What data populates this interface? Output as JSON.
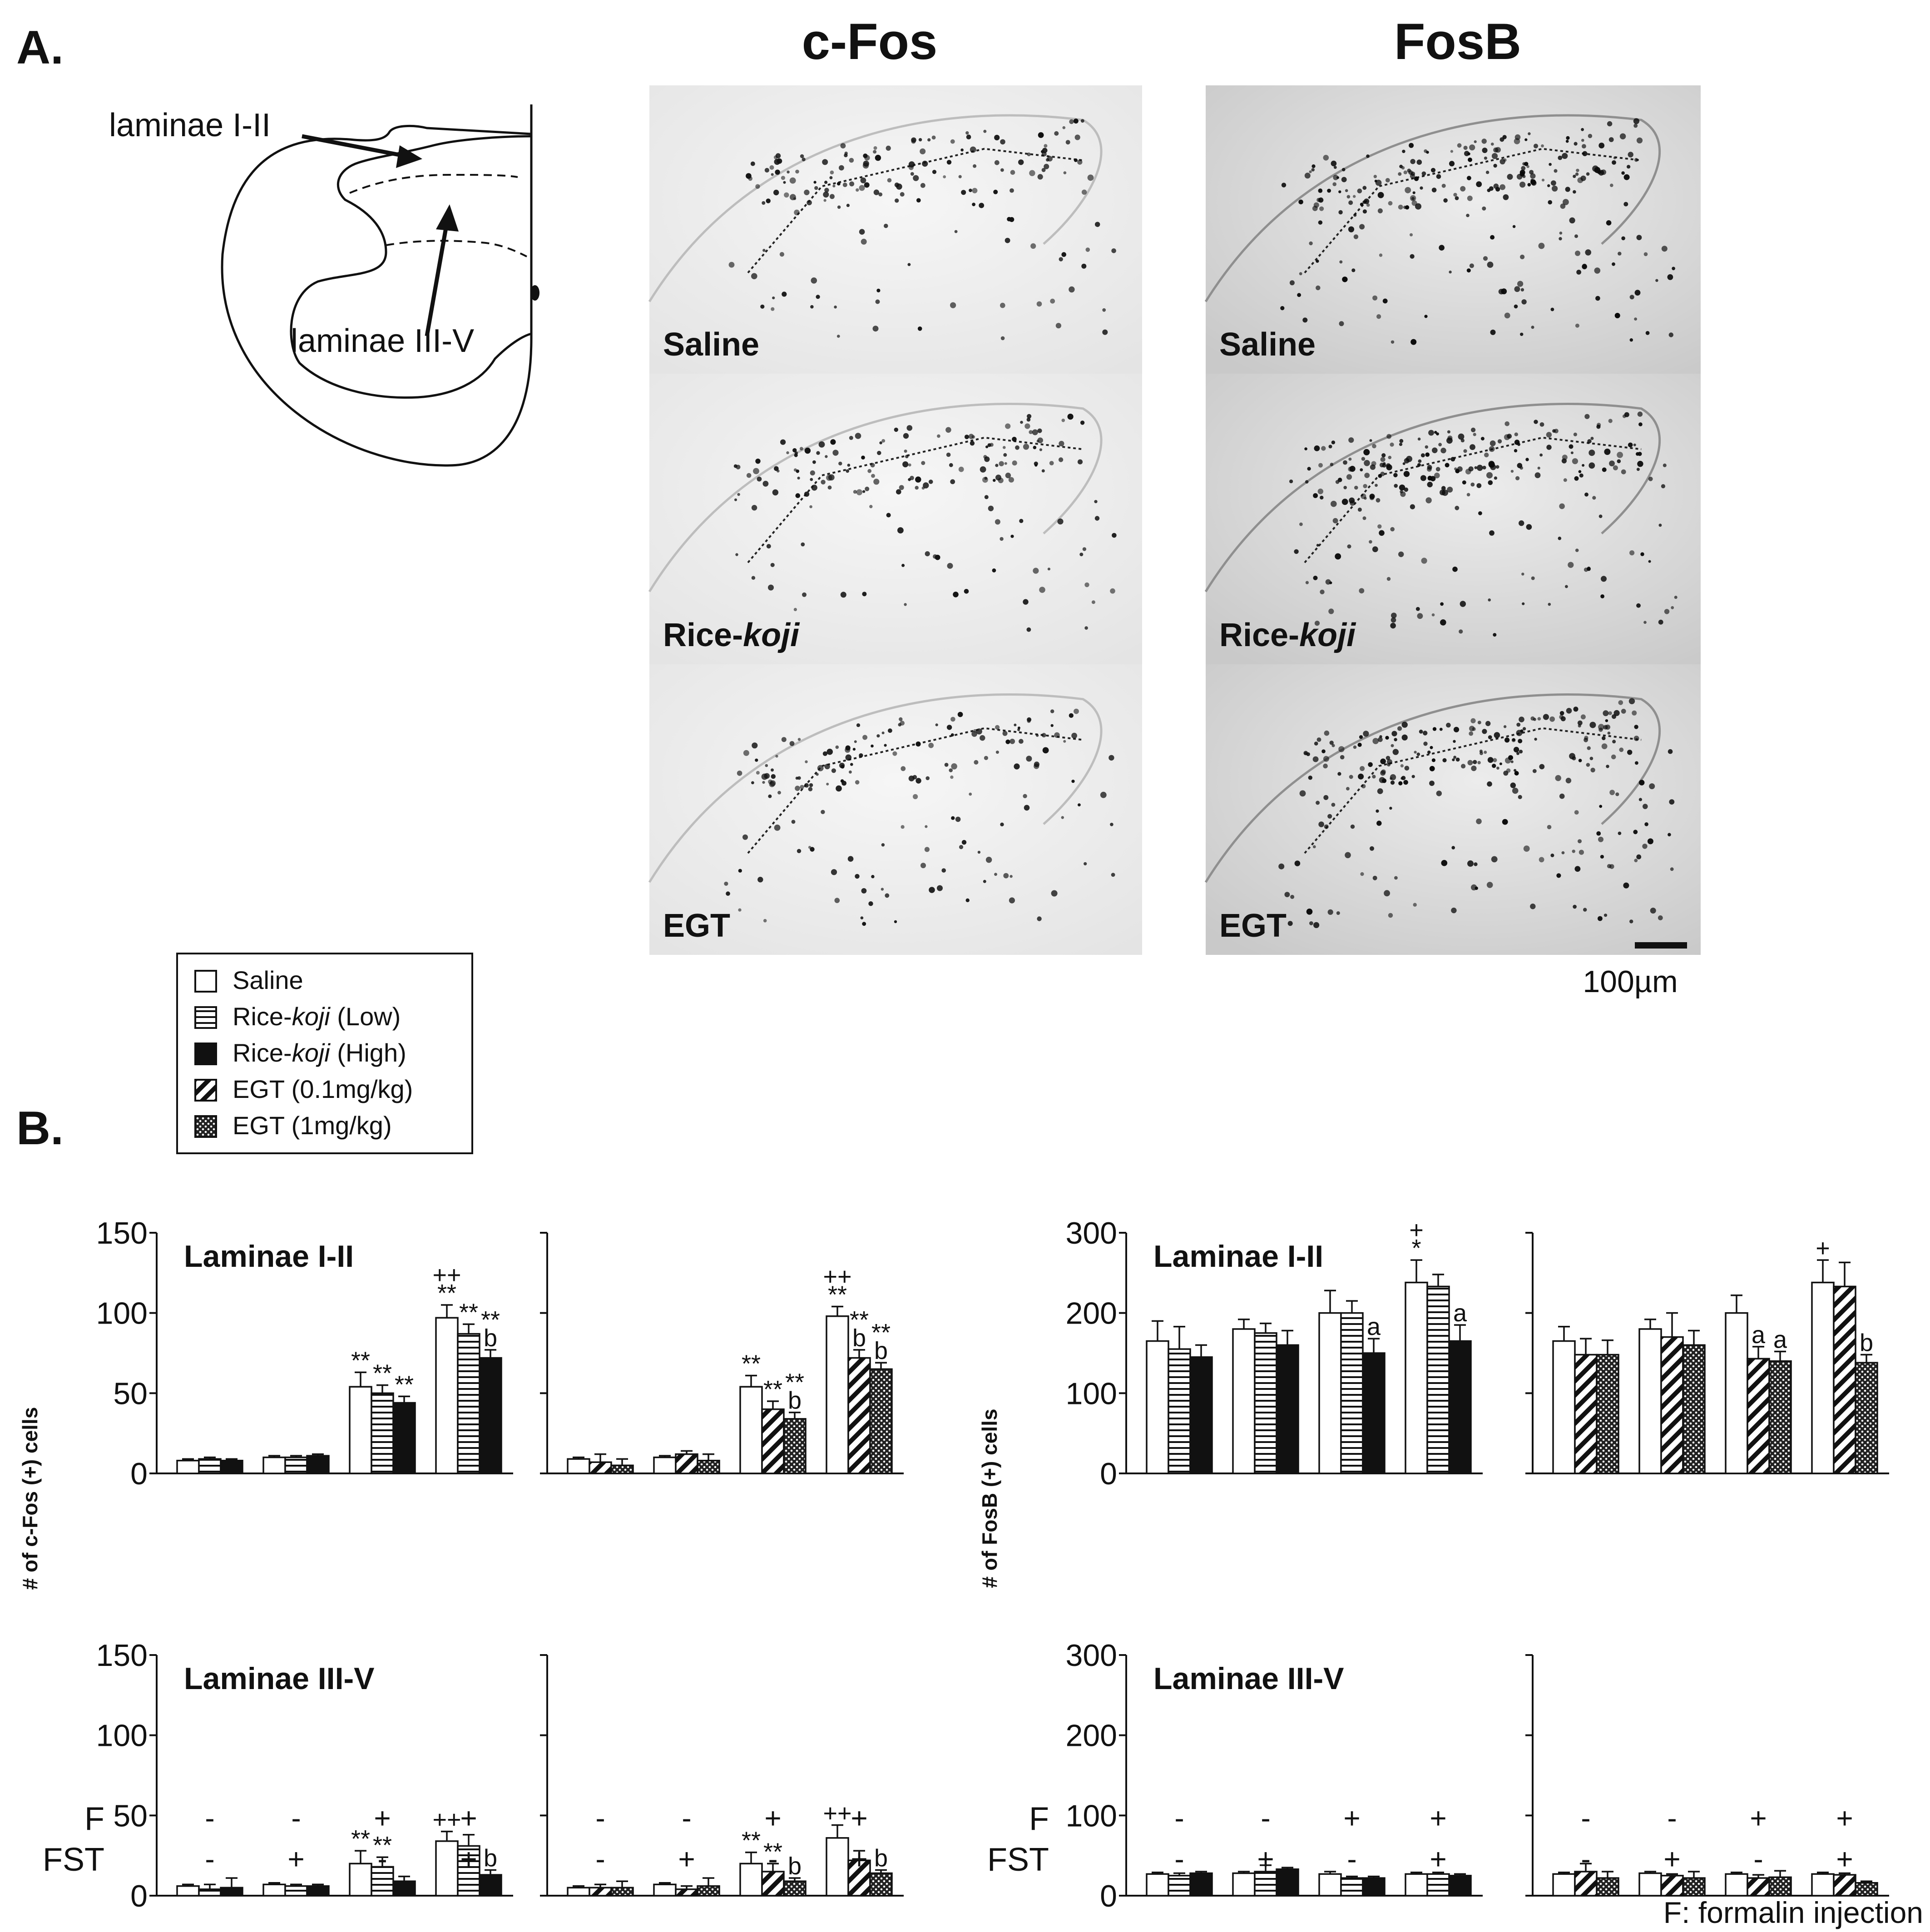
{
  "panel_labels": {
    "a": "A.",
    "b": "B."
  },
  "schematic": {
    "label_top": "laminae I-II",
    "label_bottom": "laminae III-V"
  },
  "micrographs": {
    "column_titles": [
      "c-Fos",
      "FosB"
    ],
    "row_labels": [
      {
        "prefix": "Saline",
        "italic": ""
      },
      {
        "prefix": "Rice-",
        "italic": "koji"
      },
      {
        "prefix": "EGT",
        "italic": ""
      }
    ],
    "scale_bar_label": "100µm"
  },
  "legend": {
    "items": [
      {
        "text": "Saline",
        "italic": "",
        "suffix": "",
        "pattern": "open"
      },
      {
        "text": "Rice-",
        "italic": "koji",
        "suffix": " (Low)",
        "pattern": "hstripe"
      },
      {
        "text": "Rice-",
        "italic": "koji",
        "suffix": " (High)",
        "pattern": "solid"
      },
      {
        "text": "EGT (0.1mg/kg)",
        "italic": "",
        "suffix": "",
        "pattern": "diag"
      },
      {
        "text": "EGT (1mg/kg)",
        "italic": "",
        "suffix": "",
        "pattern": "dots"
      }
    ]
  },
  "y_axis_titles": {
    "cfos": "# of c-Fos (+) cells",
    "fosb": "# of FosB (+) cells"
  },
  "condition_rows": {
    "labels": [
      "F",
      "FST"
    ],
    "f": [
      "-",
      "-",
      "+",
      "+"
    ],
    "fst": [
      "-",
      "+",
      "-",
      "+"
    ]
  },
  "footnote": "F: formalin injection",
  "chart_data": [
    {
      "type": "bar",
      "title": "Laminae I-II",
      "marker": "c-Fos",
      "comparison": "Rice-koji",
      "ylim": [
        0,
        150
      ],
      "yticks": [
        0,
        50,
        100,
        150
      ],
      "categories": [
        "F- FST-",
        "F- FST+",
        "F+ FST-",
        "F+ FST+"
      ],
      "series": [
        {
          "name": "Saline",
          "pattern": "open",
          "values": [
            8,
            10,
            54,
            97
          ],
          "errors": [
            1,
            1,
            9,
            8
          ]
        },
        {
          "name": "Rice-koji (Low)",
          "pattern": "hstripe",
          "values": [
            9,
            10,
            50,
            87
          ],
          "errors": [
            1,
            1,
            5,
            6
          ]
        },
        {
          "name": "Rice-koji (High)",
          "pattern": "solid",
          "values": [
            8,
            11,
            44,
            72
          ],
          "errors": [
            1,
            1,
            4,
            5
          ]
        }
      ],
      "annotations": [
        [
          "",
          "",
          "",
          "",
          "",
          "",
          "**",
          "**",
          "**",
          "++ **",
          "**",
          "** b"
        ],
        [
          "",
          "",
          "",
          "",
          "",
          "",
          "",
          "",
          "",
          "",
          "",
          ""
        ]
      ]
    },
    {
      "type": "bar",
      "title": "",
      "marker": "c-Fos",
      "comparison": "EGT",
      "ylim": [
        0,
        150
      ],
      "yticks": [
        0,
        50,
        100,
        150
      ],
      "categories": [
        "F- FST-",
        "F- FST+",
        "F+ FST-",
        "F+ FST+"
      ],
      "series": [
        {
          "name": "Saline",
          "pattern": "open",
          "values": [
            9,
            10,
            54,
            98
          ],
          "errors": [
            1,
            1,
            7,
            6
          ]
        },
        {
          "name": "EGT (0.1mg/kg)",
          "pattern": "diag",
          "values": [
            7,
            12,
            40,
            72
          ],
          "errors": [
            5,
            2,
            5,
            5
          ]
        },
        {
          "name": "EGT (1mg/kg)",
          "pattern": "dots",
          "values": [
            5,
            8,
            34,
            65
          ],
          "errors": [
            4,
            4,
            4,
            4
          ]
        }
      ],
      "annotations": [
        [
          "",
          "",
          "",
          "",
          "",
          "",
          "**",
          "**",
          "** b",
          "++ **",
          "** b",
          "** b"
        ]
      ]
    },
    {
      "type": "bar",
      "title": "Laminae III-V",
      "marker": "c-Fos",
      "comparison": "Rice-koji",
      "ylim": [
        0,
        150
      ],
      "yticks": [
        0,
        50,
        100,
        150
      ],
      "categories": [
        "F- FST-",
        "F- FST+",
        "F+ FST-",
        "F+ FST+"
      ],
      "series": [
        {
          "name": "Saline",
          "pattern": "open",
          "values": [
            6,
            7,
            20,
            34
          ],
          "errors": [
            1,
            1,
            8,
            6
          ]
        },
        {
          "name": "Rice-koji (Low)",
          "pattern": "hstripe",
          "values": [
            4,
            6,
            18,
            31
          ],
          "errors": [
            3,
            1,
            6,
            7
          ]
        },
        {
          "name": "Rice-koji (High)",
          "pattern": "solid",
          "values": [
            5,
            6,
            9,
            13
          ],
          "errors": [
            6,
            1,
            3,
            3
          ]
        }
      ],
      "annotations": [
        [
          "",
          "",
          "",
          "",
          "",
          "",
          "**",
          "**",
          "",
          "++",
          "",
          "b"
        ]
      ]
    },
    {
      "type": "bar",
      "title": "",
      "marker": "c-Fos",
      "comparison": "EGT",
      "ylim": [
        0,
        150
      ],
      "yticks": [
        0,
        50,
        100,
        150
      ],
      "categories": [
        "F- FST-",
        "F- FST+",
        "F+ FST-",
        "F+ FST+"
      ],
      "series": [
        {
          "name": "Saline",
          "pattern": "open",
          "values": [
            5,
            7,
            20,
            36
          ],
          "errors": [
            1,
            1,
            7,
            8
          ]
        },
        {
          "name": "EGT (0.1mg/kg)",
          "pattern": "diag",
          "values": [
            5,
            4,
            15,
            22
          ],
          "errors": [
            2,
            2,
            5,
            6
          ]
        },
        {
          "name": "EGT (1mg/kg)",
          "pattern": "dots",
          "values": [
            5,
            6,
            9,
            14
          ],
          "errors": [
            4,
            5,
            2,
            2
          ]
        }
      ],
      "annotations": [
        [
          "",
          "",
          "",
          "",
          "",
          "",
          "**",
          "**",
          "b",
          "++",
          "",
          "b"
        ]
      ]
    },
    {
      "type": "bar",
      "title": "Laminae I-II",
      "marker": "FosB",
      "comparison": "Rice-koji",
      "ylim": [
        0,
        300
      ],
      "yticks": [
        0,
        100,
        200,
        300
      ],
      "categories": [
        "F- FST-",
        "F- FST+",
        "F+ FST-",
        "F+ FST+"
      ],
      "series": [
        {
          "name": "Saline",
          "pattern": "open",
          "values": [
            165,
            180,
            200,
            238
          ],
          "errors": [
            25,
            12,
            28,
            28
          ]
        },
        {
          "name": "Rice-koji (Low)",
          "pattern": "hstripe",
          "values": [
            155,
            175,
            200,
            233
          ],
          "errors": [
            28,
            12,
            15,
            15
          ]
        },
        {
          "name": "Rice-koji (High)",
          "pattern": "solid",
          "values": [
            145,
            160,
            150,
            165
          ],
          "errors": [
            15,
            18,
            18,
            20
          ]
        }
      ],
      "annotations": [
        [
          "",
          "",
          "",
          "",
          "",
          "",
          "",
          "",
          "a",
          "+ *",
          "",
          "a"
        ]
      ]
    },
    {
      "type": "bar",
      "title": "",
      "marker": "FosB",
      "comparison": "EGT",
      "ylim": [
        0,
        300
      ],
      "yticks": [
        0,
        100,
        200,
        300
      ],
      "categories": [
        "F- FST-",
        "F- FST+",
        "F+ FST-",
        "F+ FST+"
      ],
      "series": [
        {
          "name": "Saline",
          "pattern": "open",
          "values": [
            165,
            180,
            200,
            238
          ],
          "errors": [
            18,
            12,
            22,
            28
          ]
        },
        {
          "name": "EGT (0.1mg/kg)",
          "pattern": "diag",
          "values": [
            148,
            170,
            143,
            233
          ],
          "errors": [
            20,
            30,
            15,
            30
          ]
        },
        {
          "name": "EGT (1mg/kg)",
          "pattern": "dots",
          "values": [
            148,
            160,
            140,
            138
          ],
          "errors": [
            18,
            18,
            12,
            10
          ]
        }
      ],
      "annotations": [
        [
          "",
          "",
          "",
          "",
          "",
          "",
          "",
          "a",
          "a",
          "+",
          "",
          "b"
        ]
      ]
    },
    {
      "type": "bar",
      "title": "Laminae III-V",
      "marker": "FosB",
      "comparison": "Rice-koji",
      "ylim": [
        0,
        300
      ],
      "yticks": [
        0,
        100,
        200,
        300
      ],
      "categories": [
        "F- FST-",
        "F- FST+",
        "F+ FST-",
        "F+ FST+"
      ],
      "series": [
        {
          "name": "Saline",
          "pattern": "open",
          "values": [
            27,
            28,
            27,
            27
          ],
          "errors": [
            2,
            2,
            3,
            2
          ]
        },
        {
          "name": "Rice-koji (Low)",
          "pattern": "hstripe",
          "values": [
            25,
            30,
            22,
            27
          ],
          "errors": [
            3,
            8,
            2,
            2
          ]
        },
        {
          "name": "Rice-koji (High)",
          "pattern": "solid",
          "values": [
            28,
            33,
            22,
            25
          ],
          "errors": [
            2,
            2,
            2,
            2
          ]
        }
      ],
      "annotations": [
        [
          "",
          "",
          "",
          "",
          "",
          "",
          "",
          "",
          "",
          "",
          "",
          ""
        ]
      ]
    },
    {
      "type": "bar",
      "title": "",
      "marker": "FosB",
      "comparison": "EGT",
      "ylim": [
        0,
        300
      ],
      "yticks": [
        0,
        100,
        200,
        300
      ],
      "categories": [
        "F- FST-",
        "F- FST+",
        "F+ FST-",
        "F+ FST+"
      ],
      "series": [
        {
          "name": "Saline",
          "pattern": "open",
          "values": [
            27,
            28,
            27,
            27
          ],
          "errors": [
            2,
            2,
            2,
            2
          ]
        },
        {
          "name": "EGT (0.1mg/kg)",
          "pattern": "diag",
          "values": [
            30,
            25,
            22,
            26
          ],
          "errors": [
            10,
            2,
            4,
            2
          ]
        },
        {
          "name": "EGT (1mg/kg)",
          "pattern": "dots",
          "values": [
            22,
            22,
            23,
            16
          ],
          "errors": [
            8,
            8,
            8,
            2
          ]
        }
      ],
      "annotations": [
        [
          "",
          "",
          "",
          "",
          "",
          "",
          "",
          "",
          "",
          "",
          "",
          ""
        ]
      ]
    }
  ]
}
